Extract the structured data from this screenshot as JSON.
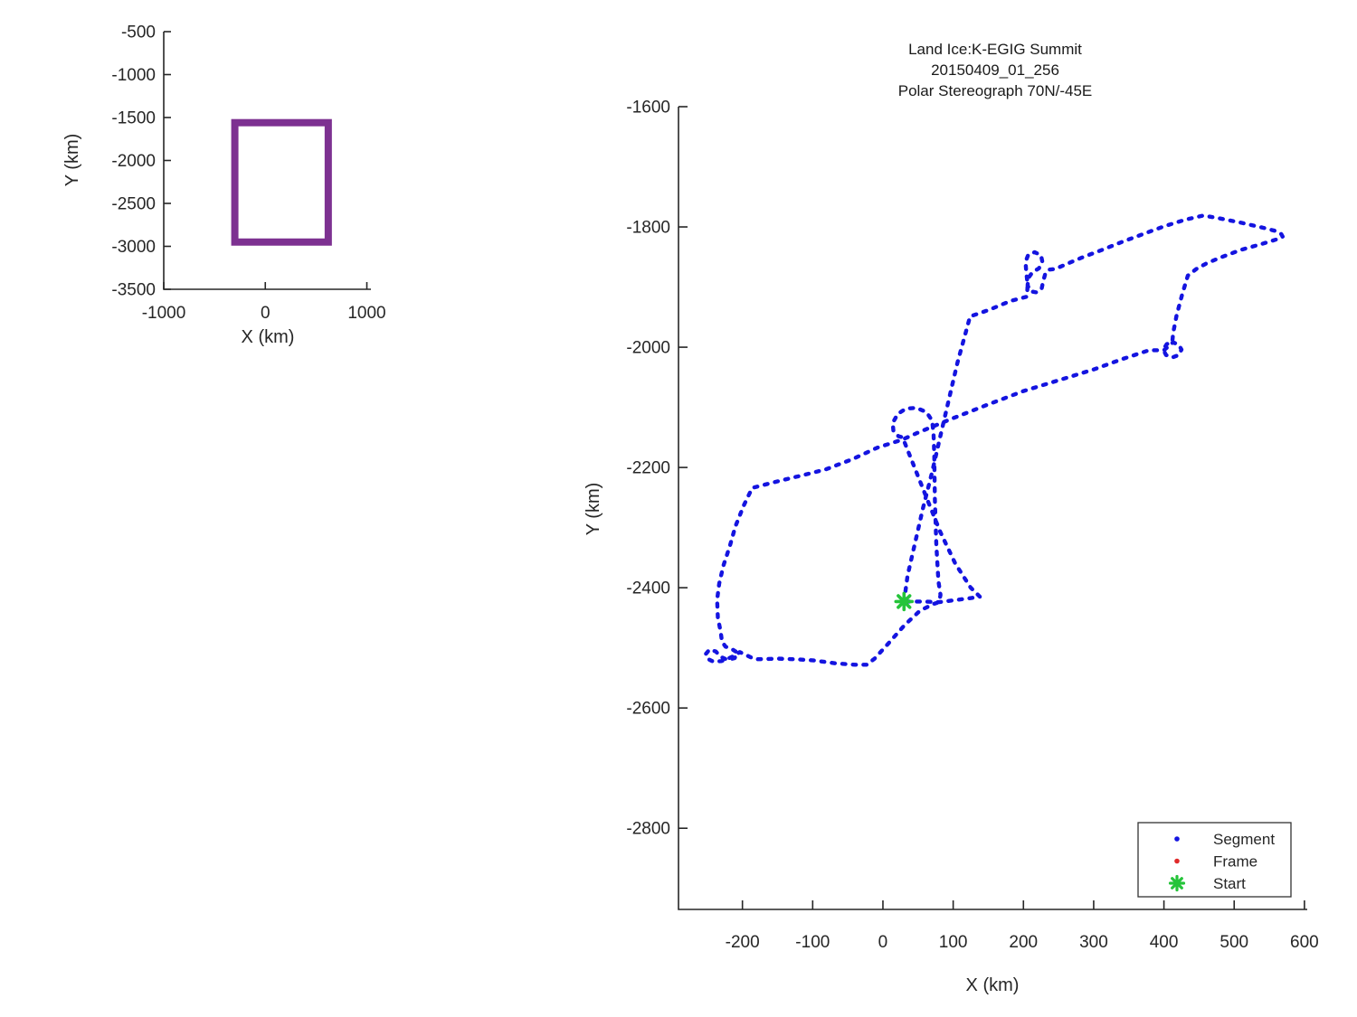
{
  "figure": {
    "background": "#ffffff",
    "axis_color": "#262626"
  },
  "chart_data": [
    {
      "type": "line",
      "name": "overview-map",
      "xlabel": "X (km)",
      "ylabel": "Y (km)",
      "x_ticks": [
        -1000,
        0,
        1000
      ],
      "y_ticks": [
        -500,
        -1000,
        -1500,
        -2000,
        -2500,
        -3000,
        -3500
      ],
      "xlim": [
        -1000,
        1040
      ],
      "ylim": [
        -3500,
        -500
      ],
      "grid": false,
      "coverage_box": {
        "x_min": -300,
        "x_max": 620,
        "y_min": -2950,
        "y_max": -1560,
        "color": "#7d3191",
        "line_width": 8
      }
    },
    {
      "type": "line",
      "name": "flight-track-plot",
      "title_lines": [
        "Land Ice:K-EGIG Summit",
        "20150409_01_256",
        "Polar Stereograph 70N/-45E"
      ],
      "xlabel": "X (km)",
      "ylabel": "Y (km)",
      "x_ticks": [
        -200,
        -100,
        0,
        100,
        200,
        300,
        400,
        500,
        600
      ],
      "y_ticks": [
        -1600,
        -1800,
        -2000,
        -2200,
        -2400,
        -2600,
        -2800
      ],
      "xlim": [
        -291,
        604
      ],
      "ylim": [
        -2935,
        -1600
      ],
      "grid": false,
      "legend": [
        {
          "label": "Segment",
          "color": "#1414e0",
          "marker": "dot"
        },
        {
          "label": "Frame",
          "color": "#e02a2a",
          "marker": "dot"
        },
        {
          "label": "Start",
          "color": "#25c43a",
          "marker": "asterisk"
        }
      ],
      "start_point": {
        "x": 30,
        "y": -2423
      },
      "track": {
        "series": "Segment",
        "color": "#1414e0",
        "points": [
          [
            30,
            -2423
          ],
          [
            35,
            -2380
          ],
          [
            46,
            -2324
          ],
          [
            57,
            -2268
          ],
          [
            70,
            -2208
          ],
          [
            82,
            -2147
          ],
          [
            94,
            -2086
          ],
          [
            106,
            -2026
          ],
          [
            118,
            -1975
          ],
          [
            124,
            -1949
          ],
          [
            151,
            -1938
          ],
          [
            182,
            -1923
          ],
          [
            205,
            -1916
          ],
          [
            206,
            -1896
          ],
          [
            204,
            -1875
          ],
          [
            203,
            -1858
          ],
          [
            207,
            -1846
          ],
          [
            216,
            -1842
          ],
          [
            225,
            -1847
          ],
          [
            227,
            -1858
          ],
          [
            222,
            -1869
          ],
          [
            213,
            -1875
          ],
          [
            207,
            -1885
          ],
          [
            206,
            -1897
          ],
          [
            210,
            -1907
          ],
          [
            219,
            -1909
          ],
          [
            226,
            -1902
          ],
          [
            228,
            -1891
          ],
          [
            231,
            -1878
          ],
          [
            236,
            -1871
          ],
          [
            245,
            -1870
          ],
          [
            257,
            -1864
          ],
          [
            271,
            -1857
          ],
          [
            283,
            -1851
          ],
          [
            310,
            -1839
          ],
          [
            340,
            -1825
          ],
          [
            370,
            -1812
          ],
          [
            400,
            -1799
          ],
          [
            430,
            -1788
          ],
          [
            456,
            -1781
          ],
          [
            480,
            -1786
          ],
          [
            510,
            -1793
          ],
          [
            540,
            -1801
          ],
          [
            560,
            -1807
          ],
          [
            567,
            -1812
          ],
          [
            569,
            -1816
          ],
          [
            565,
            -1819
          ],
          [
            540,
            -1828
          ],
          [
            510,
            -1838
          ],
          [
            480,
            -1851
          ],
          [
            460,
            -1861
          ],
          [
            446,
            -1870
          ],
          [
            434,
            -1881
          ],
          [
            426,
            -1912
          ],
          [
            418,
            -1947
          ],
          [
            413,
            -1977
          ],
          [
            412,
            -1991
          ],
          [
            404,
            -1995
          ],
          [
            399,
            -2004
          ],
          [
            403,
            -2013
          ],
          [
            412,
            -2017
          ],
          [
            421,
            -2013
          ],
          [
            425,
            -2004
          ],
          [
            421,
            -1996
          ],
          [
            413,
            -1992
          ],
          [
            400,
            -2005
          ],
          [
            379,
            -2005
          ],
          [
            340,
            -2020
          ],
          [
            300,
            -2037
          ],
          [
            250,
            -2055
          ],
          [
            200,
            -2073
          ],
          [
            150,
            -2095
          ],
          [
            100,
            -2118
          ],
          [
            50,
            -2142
          ],
          [
            27,
            -2154
          ],
          [
            -8,
            -2167
          ],
          [
            -43,
            -2186
          ],
          [
            -81,
            -2203
          ],
          [
            -111,
            -2212
          ],
          [
            -146,
            -2222
          ],
          [
            -186,
            -2234
          ],
          [
            -198,
            -2263
          ],
          [
            -210,
            -2298
          ],
          [
            -218,
            -2331
          ],
          [
            -227,
            -2363
          ],
          [
            -233,
            -2393
          ],
          [
            -236,
            -2420
          ],
          [
            -235,
            -2450
          ],
          [
            -231,
            -2473
          ],
          [
            -229,
            -2490
          ],
          [
            -224,
            -2498
          ],
          [
            -215,
            -2502
          ],
          [
            -207,
            -2508
          ],
          [
            -211,
            -2517
          ],
          [
            -221,
            -2520
          ],
          [
            -231,
            -2515
          ],
          [
            -238,
            -2506
          ],
          [
            -247,
            -2503
          ],
          [
            -252,
            -2510
          ],
          [
            -250,
            -2518
          ],
          [
            -241,
            -2523
          ],
          [
            -230,
            -2522
          ],
          [
            -219,
            -2517
          ],
          [
            -209,
            -2512
          ],
          [
            -204,
            -2507
          ],
          [
            -182,
            -2519
          ],
          [
            -149,
            -2518
          ],
          [
            -124,
            -2519
          ],
          [
            -98,
            -2521
          ],
          [
            -66,
            -2526
          ],
          [
            -40,
            -2528
          ],
          [
            -23,
            -2528
          ],
          [
            -12,
            -2518
          ],
          [
            9,
            -2491
          ],
          [
            31,
            -2462
          ],
          [
            53,
            -2438
          ],
          [
            72,
            -2427
          ],
          [
            80,
            -2424
          ],
          [
            82,
            -2412
          ],
          [
            79,
            -2389
          ],
          [
            76,
            -2329
          ],
          [
            74,
            -2254
          ],
          [
            73,
            -2178
          ],
          [
            72,
            -2143
          ],
          [
            70,
            -2122
          ],
          [
            62,
            -2108
          ],
          [
            48,
            -2101
          ],
          [
            33,
            -2102
          ],
          [
            21,
            -2111
          ],
          [
            14,
            -2126
          ],
          [
            15,
            -2140
          ],
          [
            22,
            -2148
          ],
          [
            28,
            -2150
          ],
          [
            45,
            -2200
          ],
          [
            62,
            -2250
          ],
          [
            82,
            -2308
          ],
          [
            103,
            -2360
          ],
          [
            125,
            -2400
          ],
          [
            138,
            -2415
          ],
          [
            120,
            -2418
          ],
          [
            100,
            -2421
          ],
          [
            80,
            -2424
          ],
          [
            57,
            -2423
          ],
          [
            40,
            -2423
          ],
          [
            30,
            -2423
          ]
        ]
      }
    }
  ]
}
